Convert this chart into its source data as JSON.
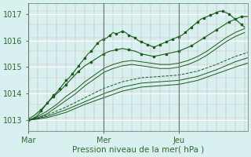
{
  "bg_color": "#cce8e8",
  "plot_bg_color": "#d8f0f0",
  "grid_color_major": "#b0d0d0",
  "grid_color_minor": "#e8b0b0",
  "line_color": "#1a5c1a",
  "marker_color": "#1a5c1a",
  "axis_label": "Pression niveau de la mer( hPa )",
  "axis_label_color": "#2d6b2d",
  "x_ticks": [
    0,
    24,
    48
  ],
  "x_tick_labels": [
    "Mar",
    "Mer",
    "Jeu"
  ],
  "y_ticks": [
    1013,
    1014,
    1015,
    1016,
    1017
  ],
  "ylim": [
    1012.6,
    1017.4
  ],
  "xlim": [
    0,
    70
  ],
  "vline_positions": [
    0,
    24,
    48
  ],
  "series": [
    {
      "x": [
        0,
        1,
        2,
        3,
        4,
        5,
        6,
        7,
        8,
        9,
        10,
        11,
        12,
        13,
        14,
        15,
        16,
        17,
        18,
        19,
        20,
        21,
        22,
        23,
        24,
        25,
        26,
        27,
        28,
        29,
        30,
        31,
        32,
        33,
        34,
        35,
        36,
        37,
        38,
        39,
        40,
        41,
        42,
        43,
        44,
        45,
        46,
        47,
        48,
        49,
        50,
        51,
        52,
        53,
        54,
        55,
        56,
        57,
        58,
        59,
        60,
        61,
        62,
        63,
        64,
        65,
        66,
        67,
        68,
        69
      ],
      "y": [
        1013.0,
        1013.05,
        1013.1,
        1013.2,
        1013.35,
        1013.5,
        1013.65,
        1013.8,
        1013.95,
        1014.05,
        1014.2,
        1014.35,
        1014.5,
        1014.6,
        1014.75,
        1014.9,
        1015.05,
        1015.2,
        1015.35,
        1015.5,
        1015.6,
        1015.75,
        1015.9,
        1016.0,
        1016.05,
        1016.1,
        1016.2,
        1016.3,
        1016.25,
        1016.3,
        1016.35,
        1016.3,
        1016.2,
        1016.15,
        1016.1,
        1016.0,
        1015.95,
        1015.9,
        1015.85,
        1015.8,
        1015.75,
        1015.8,
        1015.85,
        1015.9,
        1015.95,
        1016.0,
        1016.05,
        1016.1,
        1016.15,
        1016.2,
        1016.3,
        1016.4,
        1016.5,
        1016.6,
        1016.7,
        1016.8,
        1016.85,
        1016.9,
        1016.95,
        1017.0,
        1017.05,
        1017.1,
        1017.1,
        1017.05,
        1017.0,
        1016.9,
        1016.8,
        1016.7,
        1016.6,
        1016.5
      ],
      "style": "solid",
      "marker": true,
      "marker_every": 2
    },
    {
      "x": [
        0,
        2,
        4,
        6,
        8,
        10,
        12,
        14,
        16,
        18,
        20,
        22,
        24,
        26,
        28,
        30,
        32,
        34,
        36,
        38,
        40,
        42,
        44,
        46,
        48,
        50,
        52,
        54,
        56,
        58,
        60,
        62,
        64,
        66,
        68,
        70
      ],
      "y": [
        1013.05,
        1013.2,
        1013.4,
        1013.65,
        1013.9,
        1014.1,
        1014.35,
        1014.6,
        1014.85,
        1015.05,
        1015.2,
        1015.35,
        1015.5,
        1015.6,
        1015.65,
        1015.7,
        1015.65,
        1015.6,
        1015.5,
        1015.45,
        1015.4,
        1015.45,
        1015.5,
        1015.55,
        1015.6,
        1015.7,
        1015.8,
        1015.95,
        1016.1,
        1016.25,
        1016.4,
        1016.55,
        1016.7,
        1016.8,
        1016.9,
        1016.9
      ],
      "style": "solid",
      "marker": true,
      "marker_every": 2
    },
    {
      "x": [
        0,
        3,
        6,
        9,
        12,
        15,
        18,
        21,
        24,
        27,
        30,
        33,
        36,
        39,
        42,
        45,
        48,
        51,
        54,
        57,
        60,
        63,
        66,
        69
      ],
      "y": [
        1013.0,
        1013.15,
        1013.35,
        1013.6,
        1013.9,
        1014.15,
        1014.45,
        1014.7,
        1014.95,
        1015.1,
        1015.2,
        1015.25,
        1015.2,
        1015.15,
        1015.1,
        1015.1,
        1015.15,
        1015.25,
        1015.4,
        1015.6,
        1015.85,
        1016.1,
        1016.3,
        1016.45
      ],
      "style": "solid",
      "marker": false
    },
    {
      "x": [
        0,
        3,
        6,
        9,
        12,
        15,
        18,
        21,
        24,
        27,
        30,
        33,
        36,
        39,
        42,
        45,
        48,
        51,
        54,
        57,
        60,
        63,
        66,
        69
      ],
      "y": [
        1013.0,
        1013.1,
        1013.25,
        1013.5,
        1013.75,
        1014.0,
        1014.3,
        1014.55,
        1014.8,
        1014.95,
        1015.05,
        1015.1,
        1015.05,
        1015.0,
        1014.95,
        1014.95,
        1015.0,
        1015.1,
        1015.25,
        1015.45,
        1015.7,
        1015.95,
        1016.15,
        1016.3
      ],
      "style": "solid",
      "marker": false
    },
    {
      "x": [
        0,
        6,
        12,
        18,
        24,
        30,
        36,
        42,
        48,
        54,
        60,
        66,
        70
      ],
      "y": [
        1013.0,
        1013.2,
        1013.5,
        1013.85,
        1014.2,
        1014.45,
        1014.6,
        1014.65,
        1014.7,
        1014.85,
        1015.1,
        1015.4,
        1015.55
      ],
      "style": "dashed",
      "marker": false
    },
    {
      "x": [
        0,
        6,
        12,
        18,
        24,
        30,
        36,
        42,
        48,
        54,
        60,
        66,
        70
      ],
      "y": [
        1013.0,
        1013.15,
        1013.4,
        1013.7,
        1014.0,
        1014.25,
        1014.4,
        1014.45,
        1014.5,
        1014.65,
        1014.9,
        1015.2,
        1015.35
      ],
      "style": "solid",
      "marker": false
    },
    {
      "x": [
        0,
        6,
        12,
        18,
        24,
        30,
        36,
        42,
        48,
        54,
        60,
        66,
        70
      ],
      "y": [
        1013.0,
        1013.1,
        1013.3,
        1013.6,
        1013.85,
        1014.1,
        1014.25,
        1014.3,
        1014.35,
        1014.5,
        1014.75,
        1015.0,
        1015.15
      ],
      "style": "solid",
      "marker": false
    }
  ]
}
